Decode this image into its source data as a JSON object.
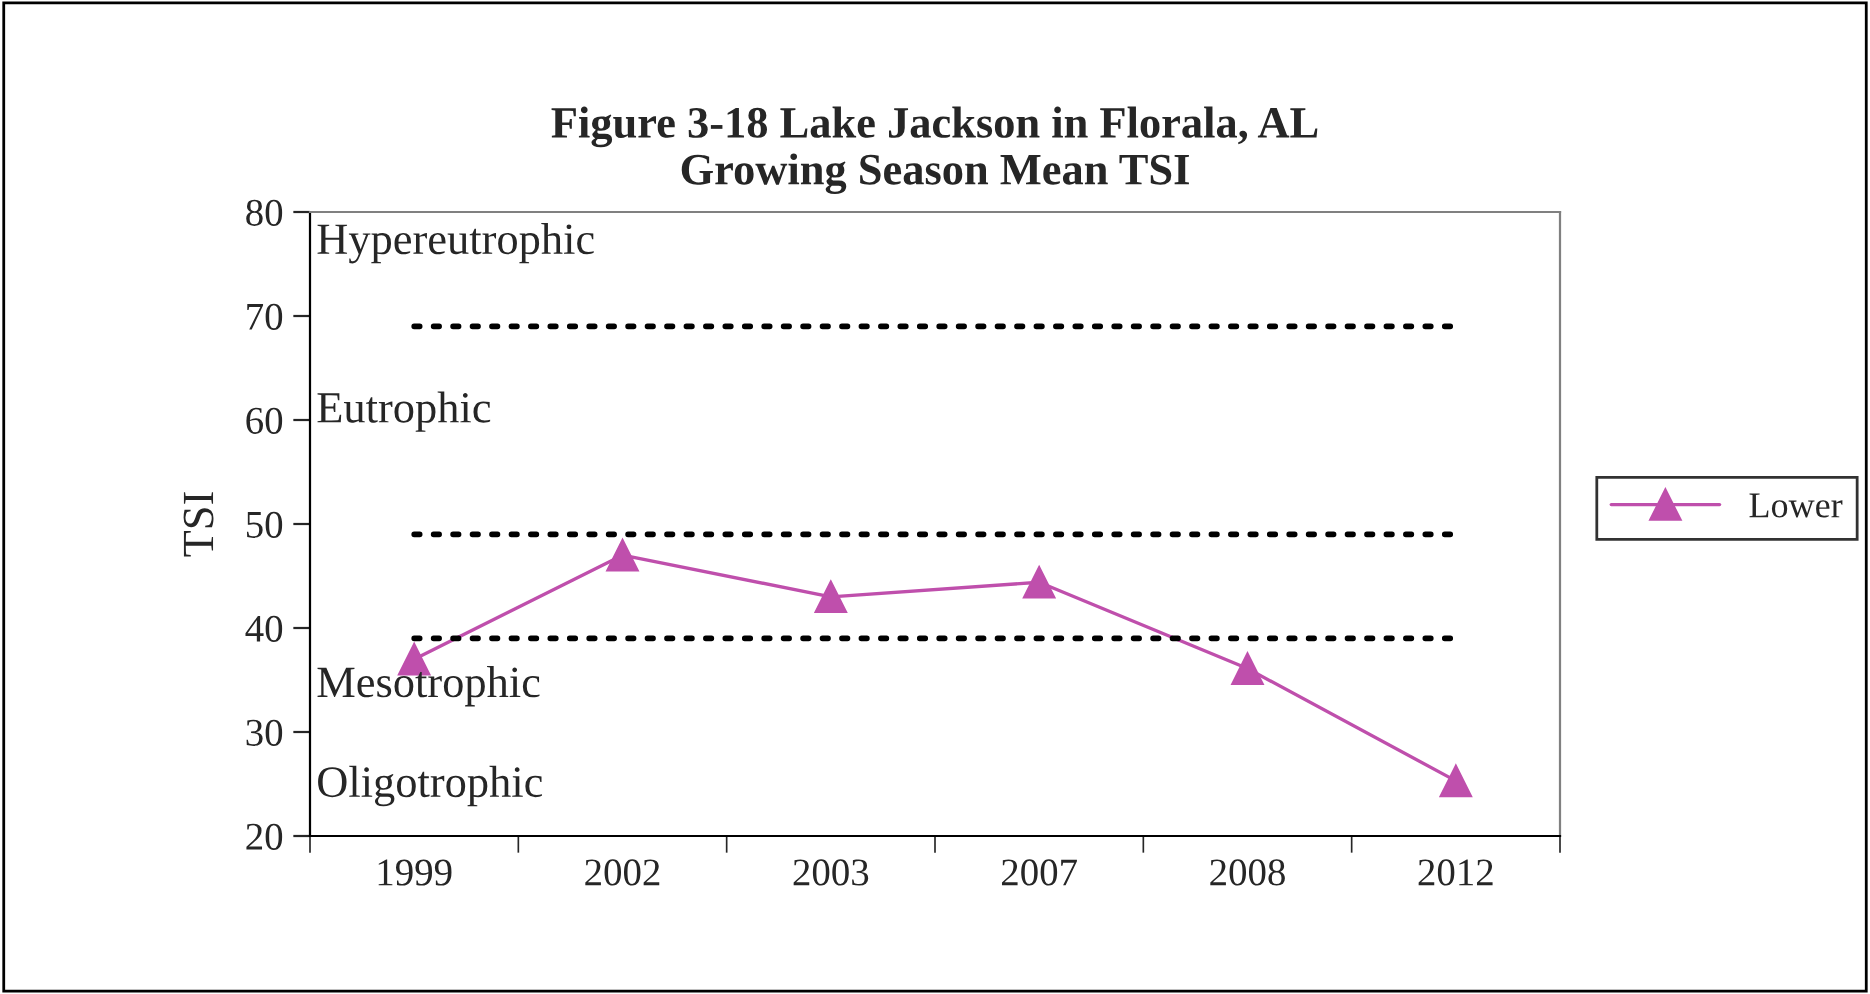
{
  "chart_data": {
    "type": "line",
    "title": "Figure 3-18 Lake Jackson in Florala, AL\nGrowing Season Mean TSI",
    "ylabel": "TSI",
    "categories": [
      "1999",
      "2002",
      "2003",
      "2007",
      "2008",
      "2012"
    ],
    "series": [
      {
        "name": "Lower",
        "color": "#bf4fac",
        "values": [
          37,
          47,
          43,
          44.4,
          36.1,
          25.3
        ]
      }
    ],
    "ylim": [
      20,
      80
    ],
    "yticks": [
      20,
      30,
      40,
      50,
      60,
      70,
      80
    ],
    "grid": false,
    "legend": "right",
    "marker": "triangle",
    "line_style": "solid",
    "ref_lines": [
      {
        "axis": "y",
        "value": 69,
        "line_style": "dotted",
        "color": "#000000"
      },
      {
        "axis": "y",
        "value": 49,
        "line_style": "dotted",
        "color": "#000000"
      },
      {
        "axis": "y",
        "value": 39,
        "line_style": "dotted",
        "color": "#000000"
      }
    ],
    "annotations": [
      "Hypereutrophic",
      "Eutrophic",
      "Mesotrophic",
      "Oligotrophic"
    ]
  }
}
